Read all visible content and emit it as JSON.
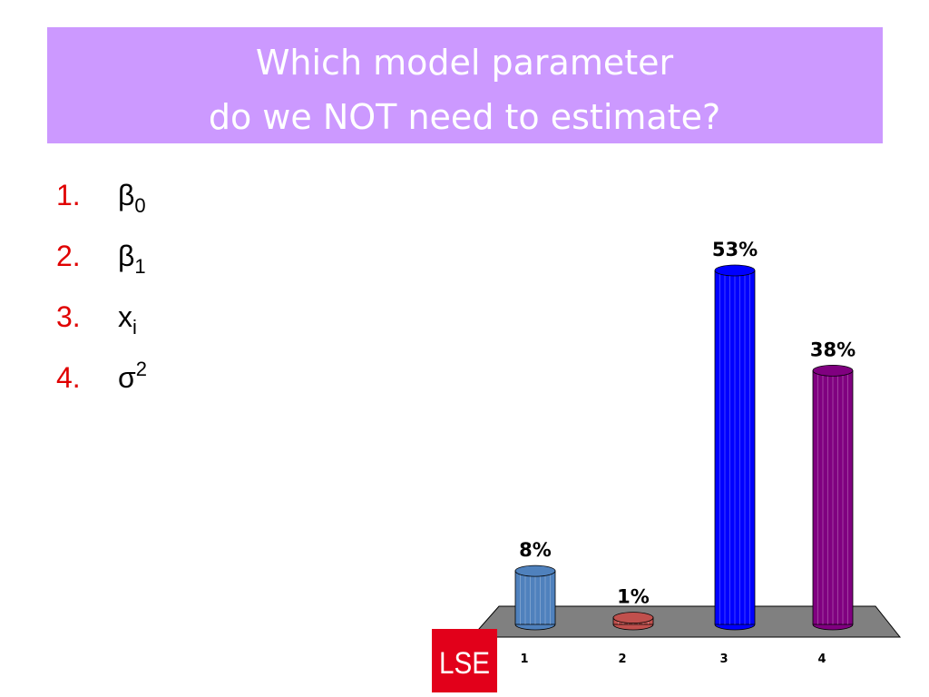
{
  "header": {
    "title_lines": [
      "Which model parameter",
      "do we NOT need to estimate?"
    ]
  },
  "options": [
    {
      "number": "1.",
      "symbol": "β",
      "sub": "0"
    },
    {
      "number": "2.",
      "symbol": "β",
      "sub": "1"
    },
    {
      "number": "3.",
      "symbol": "x",
      "sub": "i"
    },
    {
      "number": "4.",
      "symbol": "σ",
      "sup": "2"
    }
  ],
  "chart_data": {
    "type": "bar",
    "categories": [
      "1",
      "2",
      "3",
      "4"
    ],
    "values": [
      8,
      1,
      53,
      38
    ],
    "value_labels": [
      "8%",
      "1%",
      "53%",
      "38%"
    ],
    "colors": [
      "#4f81bd",
      "#c0504d",
      "#0000ff",
      "#800080"
    ]
  },
  "logo": "LSE"
}
